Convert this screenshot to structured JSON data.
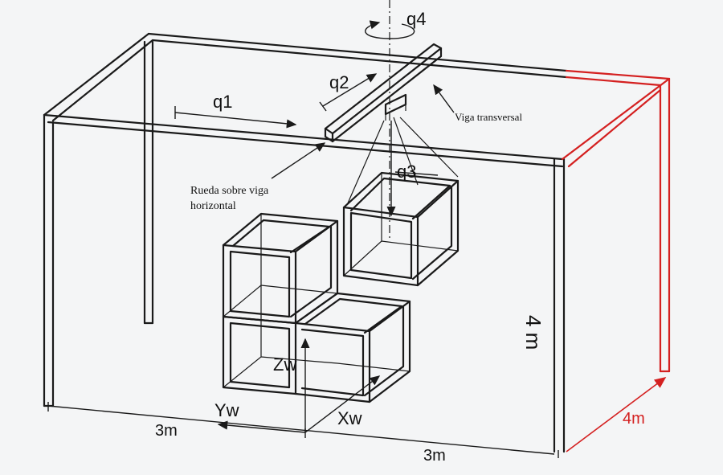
{
  "labels": {
    "q1": "q1",
    "q2": "q2",
    "q3": "q3",
    "q4": "q4",
    "viga_transversal": "Viga transversal",
    "rueda_line1": "Rueda sobre viga",
    "rueda_line2": "horizontal",
    "zw": "Zw",
    "yw": "Yw",
    "xw": "Xw",
    "dim_left": "3m",
    "dim_front": "3m",
    "dim_depth": "4m",
    "dim_height": "4 m"
  },
  "colors": {
    "ink": "#1a1a1a",
    "accent_red": "#d42020",
    "background": "#f4f5f6"
  }
}
